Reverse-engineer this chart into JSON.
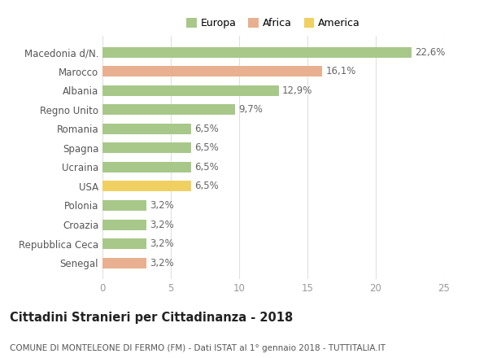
{
  "categories": [
    "Macedonia d/N.",
    "Marocco",
    "Albania",
    "Regno Unito",
    "Romania",
    "Spagna",
    "Ucraina",
    "USA",
    "Polonia",
    "Croazia",
    "Repubblica Ceca",
    "Senegal"
  ],
  "values": [
    22.6,
    16.1,
    12.9,
    9.7,
    6.5,
    6.5,
    6.5,
    6.5,
    3.2,
    3.2,
    3.2,
    3.2
  ],
  "labels": [
    "22,6%",
    "16,1%",
    "12,9%",
    "9,7%",
    "6,5%",
    "6,5%",
    "6,5%",
    "6,5%",
    "3,2%",
    "3,2%",
    "3,2%",
    "3,2%"
  ],
  "continents": [
    "Europa",
    "Africa",
    "Europa",
    "Europa",
    "Europa",
    "Europa",
    "Europa",
    "America",
    "Europa",
    "Europa",
    "Europa",
    "Africa"
  ],
  "colors": {
    "Europa": "#a8c88a",
    "Africa": "#e8b090",
    "America": "#f0d060"
  },
  "xlim": [
    0,
    25
  ],
  "xticks": [
    0,
    5,
    10,
    15,
    20,
    25
  ],
  "title": "Cittadini Stranieri per Cittadinanza - 2018",
  "subtitle": "COMUNE DI MONTELEONE DI FERMO (FM) - Dati ISTAT al 1° gennaio 2018 - TUTTITALIA.IT",
  "background_color": "#ffffff",
  "grid_color": "#e0e0e0",
  "bar_height": 0.55,
  "label_fontsize": 8.5,
  "tick_fontsize": 8.5,
  "title_fontsize": 10.5,
  "subtitle_fontsize": 7.5
}
